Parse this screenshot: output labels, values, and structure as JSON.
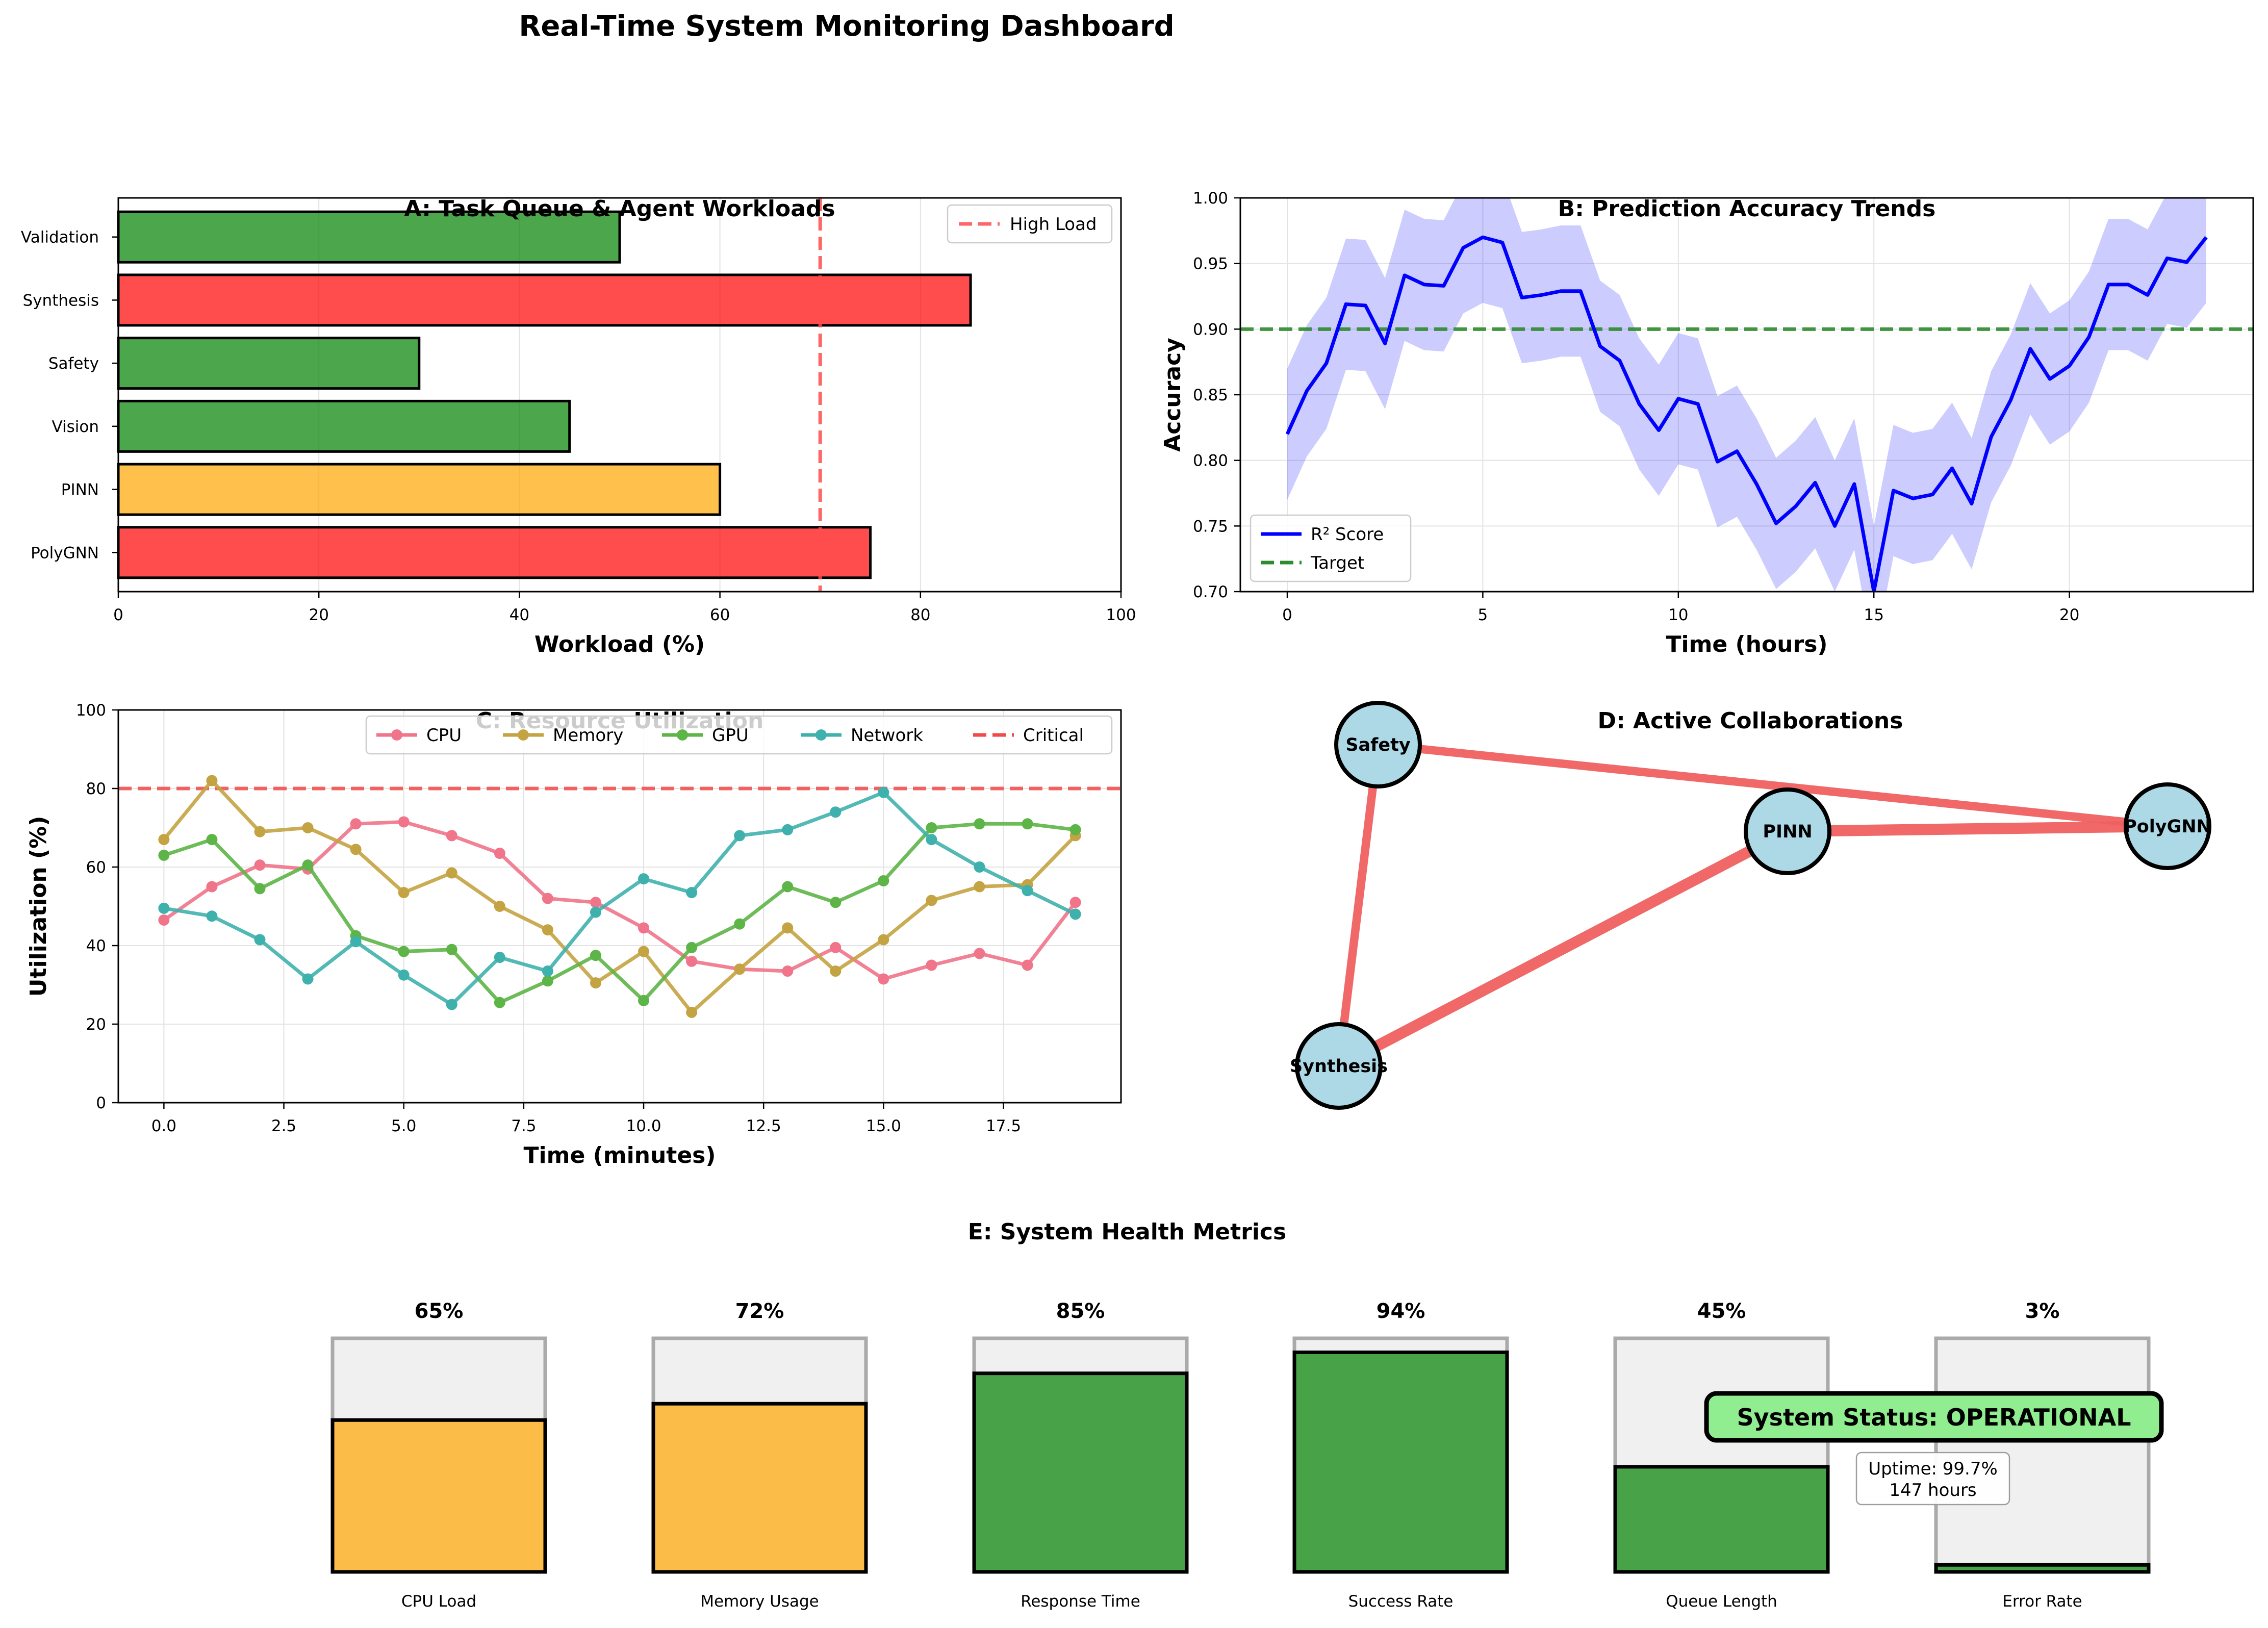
{
  "suptitle": "Real-Time System Monitoring Dashboard",
  "chart_data": [
    {
      "id": "A",
      "type": "bar",
      "orientation": "horizontal",
      "title": "A: Task Queue & Agent Workloads",
      "xlabel": "Workload (%)",
      "ylabel": "",
      "categories": [
        "PolyGNN",
        "PINN",
        "Vision",
        "Safety",
        "Synthesis",
        "Validation"
      ],
      "values": [
        75,
        60,
        45,
        30,
        85,
        50
      ],
      "bar_colors": [
        "#ff0000",
        "#ffa500",
        "#008000",
        "#008000",
        "#ff0000",
        "#008000"
      ],
      "xlim": [
        0,
        100
      ],
      "xticks": [
        0,
        20,
        40,
        60,
        80,
        100
      ],
      "reference_line": {
        "value": 70,
        "label": "High Load",
        "color": "#ff4d4d"
      },
      "grid": true,
      "legend_position": "upper right"
    },
    {
      "id": "B",
      "type": "line",
      "title": "B: Prediction Accuracy Trends",
      "xlabel": "Time (hours)",
      "ylabel": "Accuracy",
      "x": [
        0,
        0.5,
        1,
        1.5,
        2,
        2.5,
        3,
        3.5,
        4,
        4.5,
        5,
        5.5,
        6,
        6.5,
        7,
        7.5,
        8,
        8.5,
        9,
        9.5,
        10,
        10.5,
        11,
        11.5,
        12,
        12.5,
        13,
        13.5,
        14,
        14.5,
        15,
        15.5,
        16,
        16.5,
        17,
        17.5,
        18,
        18.5,
        19,
        19.5,
        20,
        20.5,
        21,
        21.5,
        22,
        22.5,
        23,
        23.5
      ],
      "series": [
        {
          "name": "R² Score",
          "color": "#0000ff",
          "values": [
            0.82,
            0.853,
            0.874,
            0.919,
            0.918,
            0.889,
            0.941,
            0.934,
            0.933,
            0.962,
            0.97,
            0.966,
            0.924,
            0.926,
            0.929,
            0.929,
            0.887,
            0.876,
            0.843,
            0.823,
            0.847,
            0.843,
            0.799,
            0.807,
            0.782,
            0.752,
            0.765,
            0.783,
            0.75,
            0.782,
            0.7,
            0.777,
            0.771,
            0.774,
            0.794,
            0.767,
            0.818,
            0.846,
            0.885,
            0.862,
            0.872,
            0.894,
            0.934,
            0.934,
            0.926,
            0.954,
            0.951,
            0.97
          ],
          "band": 0.05
        }
      ],
      "reference_line": {
        "value": 0.9,
        "label": "Target",
        "color": "#2e8b2e"
      },
      "xlim": [
        -1.2,
        24.7
      ],
      "ylim": [
        0.7,
        1.0
      ],
      "xticks": [
        0,
        5,
        10,
        15,
        20
      ],
      "yticks": [
        0.7,
        0.75,
        0.8,
        0.85,
        0.9,
        0.95,
        1.0
      ],
      "grid": true,
      "legend_position": "lower left"
    },
    {
      "id": "C",
      "type": "line",
      "title": "C: Resource Utilization",
      "xlabel": "Time (minutes)",
      "ylabel": "Utilization (%)",
      "x": [
        0,
        1,
        2,
        3,
        4,
        5,
        6,
        7,
        8,
        9,
        10,
        11,
        12,
        13,
        14,
        15,
        16,
        17,
        18,
        19
      ],
      "series": [
        {
          "name": "CPU",
          "color": "#f0748a",
          "values": [
            46.5,
            55,
            60.5,
            59.5,
            71,
            71.5,
            68,
            63.5,
            52,
            51,
            44.5,
            36,
            34,
            33.5,
            39.5,
            31.5,
            35,
            38,
            35,
            51
          ]
        },
        {
          "name": "Memory",
          "color": "#c4a343",
          "values": [
            67,
            82,
            69,
            70,
            64.5,
            53.5,
            58.5,
            50,
            44,
            30.5,
            38.5,
            23,
            34,
            44.5,
            33.5,
            41.5,
            51.5,
            55,
            55.5,
            68
          ]
        },
        {
          "name": "GPU",
          "color": "#5db547",
          "values": [
            63,
            67,
            54.5,
            60.5,
            42.5,
            38.5,
            39,
            25.5,
            31,
            37.5,
            26,
            39.5,
            45.5,
            55,
            51,
            56.5,
            70,
            71,
            71,
            69.5
          ]
        },
        {
          "name": "Network",
          "color": "#3fb1ad",
          "values": [
            49.5,
            47.5,
            41.5,
            31.5,
            41,
            32.5,
            25,
            37,
            33.5,
            48.5,
            57,
            53.5,
            68,
            69.5,
            74,
            79,
            67,
            60,
            54,
            48
          ]
        }
      ],
      "reference_line": {
        "value": 80,
        "label": "Critical",
        "color": "#f04a4a"
      },
      "xlim": [
        -0.95,
        19.95
      ],
      "ylim": [
        0,
        100
      ],
      "xticks": [
        0.0,
        2.5,
        5.0,
        7.5,
        10.0,
        12.5,
        15.0,
        17.5
      ],
      "yticks": [
        0,
        20,
        40,
        60,
        80,
        100
      ],
      "grid": true,
      "legend_position": "upper center"
    },
    {
      "id": "D",
      "type": "network",
      "title": "D: Active Collaborations",
      "nodes": [
        "Safety",
        "PINN",
        "PolyGNN",
        "Synthesis"
      ],
      "edges": [
        {
          "from": "Safety",
          "to": "PolyGNN",
          "weight": 3
        },
        {
          "from": "Safety",
          "to": "Synthesis",
          "weight": 3
        },
        {
          "from": "PINN",
          "to": "PolyGNN",
          "weight": 4
        },
        {
          "from": "PINN",
          "to": "Synthesis",
          "weight": 4
        }
      ],
      "node_color": "#add8e6",
      "edge_color": "#f06060"
    },
    {
      "id": "E",
      "type": "bar",
      "title": "E: System Health Metrics",
      "categories": [
        "CPU Load",
        "Memory Usage",
        "Response Time",
        "Success Rate",
        "Queue Length",
        "Error Rate"
      ],
      "values": [
        65,
        72,
        85,
        94,
        45,
        3
      ],
      "value_labels": [
        "65%",
        "72%",
        "85%",
        "94%",
        "45%",
        "3%"
      ],
      "bar_colors": [
        "#ffa500",
        "#ffa500",
        "#008000",
        "#008000",
        "#008000",
        "#008000"
      ],
      "ylim": [
        0,
        100
      ]
    }
  ],
  "status_box": {
    "text": "System Status: OPERATIONAL",
    "color": "#90ee90",
    "uptime_line1": "Uptime: 99.7%",
    "uptime_line2": "147 hours"
  }
}
